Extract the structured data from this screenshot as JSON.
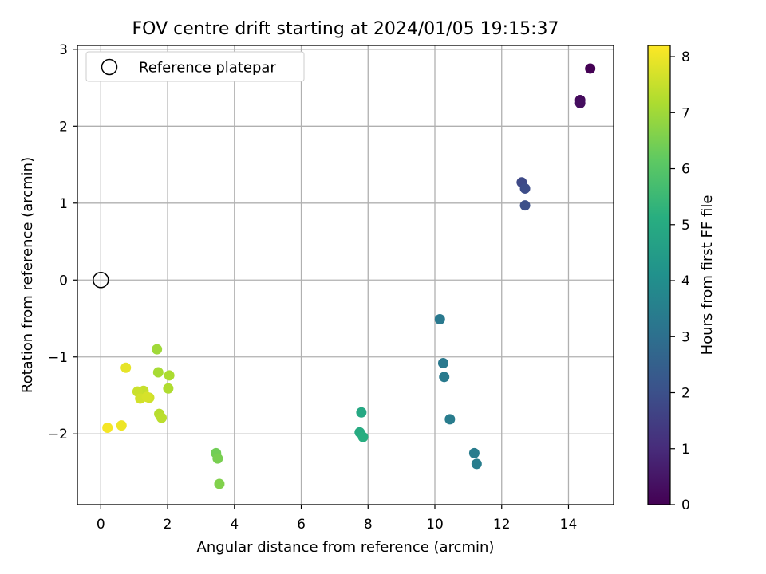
{
  "chart_data": {
    "type": "scatter",
    "title": "FOV centre drift starting at 2024/01/05 19:15:37",
    "xlabel": "Angular distance from reference (arcmin)",
    "ylabel": "Rotation from reference (arcmin)",
    "xlim": [
      -0.7,
      15.35
    ],
    "ylim": [
      -2.92,
      3.05
    ],
    "xticks": [
      0,
      2,
      4,
      6,
      8,
      10,
      12,
      14
    ],
    "yticks": [
      -2,
      -1,
      0,
      1,
      2,
      3
    ],
    "xtick_labels": [
      "0",
      "2",
      "4",
      "6",
      "8",
      "10",
      "12",
      "14"
    ],
    "ytick_labels": [
      "−2",
      "−1",
      "0",
      "1",
      "2",
      "3"
    ],
    "grid": true,
    "legend": {
      "position": "top-left",
      "entries": [
        "Reference platepar"
      ]
    },
    "reference_point": {
      "x": 0,
      "y": 0,
      "label": "Reference platepar"
    },
    "colorbar": {
      "label": "Hours from first FF file",
      "range": [
        0,
        8.2
      ],
      "ticks": [
        0,
        1,
        2,
        3,
        4,
        5,
        6,
        7,
        8
      ],
      "tick_labels": [
        "0",
        "1",
        "2",
        "3",
        "4",
        "5",
        "6",
        "7",
        "8"
      ],
      "colormap": "viridis"
    },
    "points": [
      {
        "x": 14.65,
        "y": 2.75,
        "hours": 0.0
      },
      {
        "x": 14.35,
        "y": 2.34,
        "hours": 0.2
      },
      {
        "x": 14.35,
        "y": 2.3,
        "hours": 0.3
      },
      {
        "x": 12.6,
        "y": 1.27,
        "hours": 1.8
      },
      {
        "x": 12.7,
        "y": 1.19,
        "hours": 1.9
      },
      {
        "x": 12.7,
        "y": 0.97,
        "hours": 2.0
      },
      {
        "x": 10.15,
        "y": -0.51,
        "hours": 3.3
      },
      {
        "x": 10.25,
        "y": -1.08,
        "hours": 3.3
      },
      {
        "x": 10.28,
        "y": -1.26,
        "hours": 3.35
      },
      {
        "x": 10.45,
        "y": -1.81,
        "hours": 3.4
      },
      {
        "x": 11.18,
        "y": -2.25,
        "hours": 3.4
      },
      {
        "x": 11.25,
        "y": -2.39,
        "hours": 3.45
      },
      {
        "x": 7.8,
        "y": -1.72,
        "hours": 4.9
      },
      {
        "x": 7.75,
        "y": -1.98,
        "hours": 5.0
      },
      {
        "x": 7.85,
        "y": -2.04,
        "hours": 5.1
      },
      {
        "x": 3.45,
        "y": -2.25,
        "hours": 6.4
      },
      {
        "x": 3.5,
        "y": -2.32,
        "hours": 6.5
      },
      {
        "x": 3.55,
        "y": -2.65,
        "hours": 6.6
      },
      {
        "x": 1.68,
        "y": -0.9,
        "hours": 7.0
      },
      {
        "x": 1.72,
        "y": -1.2,
        "hours": 7.1
      },
      {
        "x": 2.05,
        "y": -1.24,
        "hours": 7.15
      },
      {
        "x": 2.02,
        "y": -1.41,
        "hours": 7.2
      },
      {
        "x": 1.75,
        "y": -1.74,
        "hours": 7.3
      },
      {
        "x": 1.82,
        "y": -1.79,
        "hours": 7.35
      },
      {
        "x": 1.28,
        "y": -1.44,
        "hours": 7.5
      },
      {
        "x": 1.1,
        "y": -1.45,
        "hours": 7.55
      },
      {
        "x": 1.45,
        "y": -1.53,
        "hours": 7.6
      },
      {
        "x": 1.18,
        "y": -1.54,
        "hours": 7.65
      },
      {
        "x": 1.38,
        "y": -1.52,
        "hours": 7.7
      },
      {
        "x": 0.75,
        "y": -1.14,
        "hours": 7.9
      },
      {
        "x": 0.62,
        "y": -1.89,
        "hours": 8.0
      },
      {
        "x": 0.2,
        "y": -1.92,
        "hours": 8.1
      }
    ]
  }
}
